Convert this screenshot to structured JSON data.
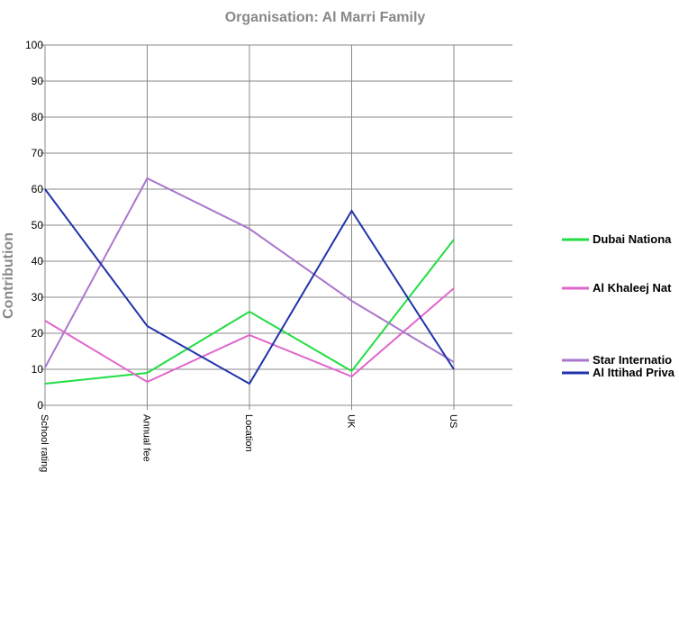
{
  "chart_data": {
    "type": "line",
    "title": "Organisation: Al Marri Family",
    "xlabel": "",
    "ylabel": "Contribution",
    "ylim": [
      0,
      100
    ],
    "yticks": [
      0,
      10,
      20,
      30,
      40,
      50,
      60,
      70,
      80,
      90,
      100
    ],
    "categories": [
      "School rating",
      "Annual fee",
      "Location",
      "UK",
      "US"
    ],
    "grid": true,
    "legend_position": "right",
    "series": [
      {
        "name": "Dubai Nationa",
        "color": "#22dd44",
        "values": [
          6,
          9,
          26,
          9.5,
          46
        ]
      },
      {
        "name": "Al Khaleej Nat",
        "color": "#e066cc",
        "values": [
          23.5,
          6.5,
          19.5,
          8,
          32.5
        ]
      },
      {
        "name": "Star Internatio",
        "color": "#aa77cc",
        "values": [
          10.5,
          63,
          49,
          29,
          12
        ]
      },
      {
        "name": "Al Ittihad Priva",
        "color": "#2233aa",
        "values": [
          60,
          22,
          6,
          54,
          10
        ]
      }
    ]
  }
}
